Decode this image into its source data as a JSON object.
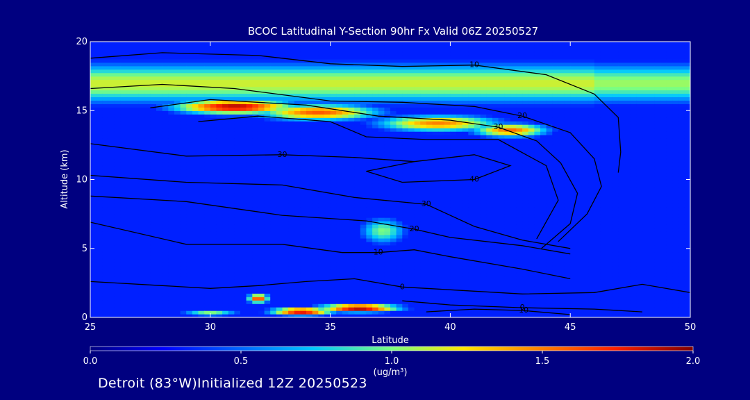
{
  "chart_data": {
    "type": "heatmap",
    "title": "BCOC Latitudinal Y-Section 90hr  Fx Valid 06Z 20250527",
    "xlabel": "Latitude",
    "ylabel": "Altitude (km)",
    "xlim": [
      25,
      50
    ],
    "ylim": [
      0,
      20
    ],
    "x_ticks": [
      "25",
      "30",
      "35",
      "40",
      "45",
      "50"
    ],
    "y_ticks": [
      "0",
      "5",
      "10",
      "15",
      "20"
    ],
    "colorbar": {
      "range": [
        0.0,
        2.0
      ],
      "ticks": [
        "0.0",
        "0.5",
        "1.0",
        "1.5",
        "2.0"
      ],
      "unit": "(ug/m³)"
    },
    "hotspots": [
      {
        "lat": 31.0,
        "alt": 15.3,
        "value": 1.9,
        "sx": 2.6,
        "sy": 0.55
      },
      {
        "lat": 34.5,
        "alt": 14.9,
        "value": 1.6,
        "sx": 2.6,
        "sy": 0.6
      },
      {
        "lat": 39.5,
        "alt": 14.1,
        "value": 1.5,
        "sx": 2.6,
        "sy": 0.6
      },
      {
        "lat": 42.5,
        "alt": 13.6,
        "value": 1.55,
        "sx": 1.6,
        "sy": 0.5
      },
      {
        "lat": 37.2,
        "alt": 6.3,
        "value": 1.0,
        "sx": 1.0,
        "sy": 1.0
      },
      {
        "lat": 36.2,
        "alt": 0.7,
        "value": 2.0,
        "sx": 1.7,
        "sy": 0.3
      },
      {
        "lat": 33.8,
        "alt": 0.45,
        "value": 1.9,
        "sx": 1.3,
        "sy": 0.3
      },
      {
        "lat": 32.0,
        "alt": 1.4,
        "value": 1.7,
        "sx": 0.45,
        "sy": 0.35
      },
      {
        "lat": 30.0,
        "alt": 0.3,
        "value": 1.2,
        "sx": 1.2,
        "sy": 0.18
      }
    ],
    "background_band": {
      "alt": 17.0,
      "value": 1.15,
      "sx": 1.5
    },
    "contours": [
      {
        "label": "10",
        "points": [
          [
            25,
            18.8
          ],
          [
            28,
            19.2
          ],
          [
            32,
            19.0
          ],
          [
            35,
            18.4
          ],
          [
            38,
            18.2
          ],
          [
            41,
            18.3
          ],
          [
            44,
            17.6
          ],
          [
            46,
            16.2
          ],
          [
            47,
            14.5
          ],
          [
            47.1,
            12.0
          ],
          [
            47.0,
            10.5
          ]
        ]
      },
      {
        "label": "20",
        "points": [
          [
            25,
            16.6
          ],
          [
            28,
            16.9
          ],
          [
            31,
            16.6
          ],
          [
            35,
            15.7
          ],
          [
            38,
            15.6
          ],
          [
            41,
            15.3
          ],
          [
            43,
            14.6
          ],
          [
            45,
            13.4
          ],
          [
            46,
            11.5
          ],
          [
            46.3,
            9.5
          ],
          [
            45.7,
            7.5
          ],
          [
            44.5,
            5.5
          ]
        ]
      },
      {
        "label": "30",
        "points": [
          [
            27.5,
            15.2
          ],
          [
            30,
            15.8
          ],
          [
            34,
            15.4
          ],
          [
            37,
            14.6
          ],
          [
            40,
            14.3
          ],
          [
            42,
            13.8
          ],
          [
            43.6,
            12.8
          ],
          [
            44.6,
            11.2
          ],
          [
            45.3,
            9.0
          ],
          [
            45.0,
            6.8
          ],
          [
            43.8,
            5.0
          ]
        ]
      },
      {
        "label": "",
        "points": [
          [
            29.5,
            14.2
          ],
          [
            32,
            14.6
          ],
          [
            35,
            14.2
          ],
          [
            36.5,
            13.1
          ],
          [
            39,
            12.9
          ],
          [
            42,
            12.9
          ],
          [
            44.0,
            11.0
          ],
          [
            44.5,
            8.5
          ],
          [
            43.6,
            5.7
          ]
        ]
      },
      {
        "label": "30",
        "points": [
          [
            25,
            12.6
          ],
          [
            29,
            11.7
          ],
          [
            33,
            11.8
          ],
          [
            36,
            11.6
          ],
          [
            38.5,
            11.3
          ]
        ]
      },
      {
        "label": "40",
        "points": [
          [
            38.5,
            11.3
          ],
          [
            41,
            11.8
          ],
          [
            42.5,
            11.0
          ],
          [
            41,
            10.0
          ],
          [
            38,
            9.8
          ],
          [
            36.5,
            10.6
          ],
          [
            38.5,
            11.3
          ]
        ]
      },
      {
        "label": "30",
        "points": [
          [
            25,
            10.3
          ],
          [
            29,
            9.8
          ],
          [
            33,
            9.6
          ],
          [
            36,
            8.7
          ],
          [
            39,
            8.2
          ],
          [
            41,
            6.6
          ],
          [
            43,
            5.6
          ],
          [
            45,
            5.0
          ]
        ]
      },
      {
        "label": "20",
        "points": [
          [
            25,
            8.8
          ],
          [
            29,
            8.4
          ],
          [
            33,
            7.4
          ],
          [
            36.5,
            7.0
          ],
          [
            38.5,
            6.4
          ],
          [
            40,
            5.8
          ],
          [
            43,
            5.2
          ],
          [
            45,
            4.6
          ]
        ]
      },
      {
        "label": "10",
        "points": [
          [
            25,
            6.9
          ],
          [
            29,
            5.3
          ],
          [
            33,
            5.3
          ],
          [
            35.5,
            4.7
          ],
          [
            37,
            4.7
          ],
          [
            38.5,
            4.9
          ],
          [
            40,
            4.4
          ],
          [
            43,
            3.5
          ],
          [
            45,
            2.8
          ]
        ]
      },
      {
        "label": "0",
        "points": [
          [
            25,
            2.6
          ],
          [
            28,
            2.3
          ],
          [
            30,
            2.1
          ],
          [
            32,
            2.3
          ],
          [
            34,
            2.6
          ],
          [
            36,
            2.8
          ],
          [
            38,
            2.2
          ],
          [
            40,
            2.0
          ],
          [
            43,
            1.7
          ],
          [
            46,
            1.8
          ],
          [
            48,
            2.4
          ],
          [
            50,
            1.8
          ]
        ]
      },
      {
        "label": "0",
        "points": [
          [
            38.0,
            1.2
          ],
          [
            40,
            0.9
          ],
          [
            43,
            0.7
          ],
          [
            46,
            0.6
          ],
          [
            48,
            0.4
          ]
        ]
      },
      {
        "label": "-10",
        "points": [
          [
            39.0,
            0.4
          ],
          [
            41,
            0.6
          ],
          [
            43,
            0.5
          ],
          [
            45,
            0.2
          ]
        ]
      }
    ]
  },
  "footer": {
    "text": "Detroit (83°W)Initialized 12Z 20250523"
  }
}
